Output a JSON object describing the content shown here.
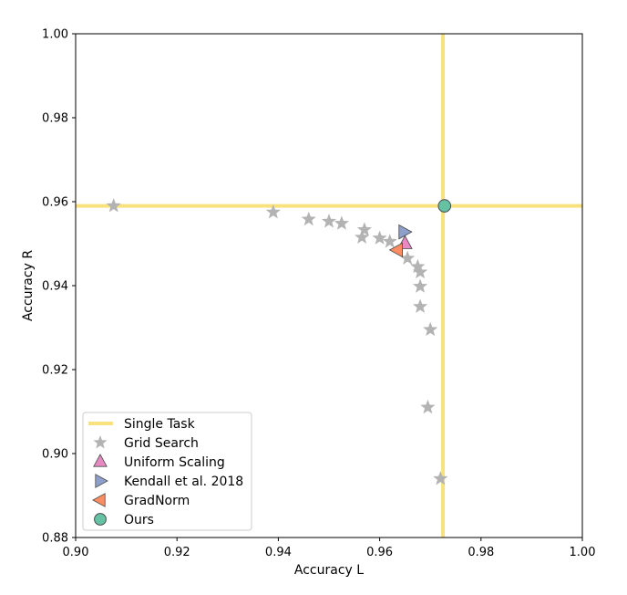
{
  "chart_data": {
    "type": "scatter",
    "xlabel": "Accuracy L",
    "ylabel": "Accuracy R",
    "xlim": [
      0.9,
      1.0
    ],
    "ylim": [
      0.88,
      1.0
    ],
    "x_ticks": [
      "0.90",
      "0.92",
      "0.94",
      "0.96",
      "0.98",
      "1.00"
    ],
    "y_ticks": [
      "0.88",
      "0.90",
      "0.92",
      "0.94",
      "0.96",
      "0.98",
      "1.00"
    ],
    "grid": false,
    "legend_position": "bottom-left",
    "single_task": {
      "name": "Single Task",
      "x": 0.9725,
      "y": 0.959,
      "color": "#f9e27d"
    },
    "series": [
      {
        "name": "Grid Search",
        "marker": "star",
        "color": "#b3b3b3",
        "x": [
          0.9075,
          0.939,
          0.946,
          0.95,
          0.9525,
          0.9565,
          0.957,
          0.96,
          0.962,
          0.9655,
          0.9675,
          0.968,
          0.968,
          0.968,
          0.97,
          0.9695,
          0.972
        ],
        "y": [
          0.959,
          0.9575,
          0.9558,
          0.9553,
          0.9548,
          0.9515,
          0.9533,
          0.9513,
          0.9505,
          0.9465,
          0.9445,
          0.9432,
          0.9398,
          0.935,
          0.9295,
          0.911,
          0.894
        ]
      },
      {
        "name": "Uniform Scaling",
        "marker": "triangle-up",
        "color": "#e78ac3",
        "x": [
          0.965
        ],
        "y": [
          0.95
        ]
      },
      {
        "name": "Kendall et al. 2018",
        "marker": "triangle-right",
        "color": "#8da0cb",
        "x": [
          0.9648
        ],
        "y": [
          0.9528
        ]
      },
      {
        "name": "GradNorm",
        "marker": "triangle-left",
        "color": "#fc8d62",
        "x": [
          0.9635
        ],
        "y": [
          0.9485
        ]
      },
      {
        "name": "Ours",
        "marker": "circle",
        "color": "#66c2a5",
        "x": [
          0.9728
        ],
        "y": [
          0.959
        ]
      }
    ]
  }
}
